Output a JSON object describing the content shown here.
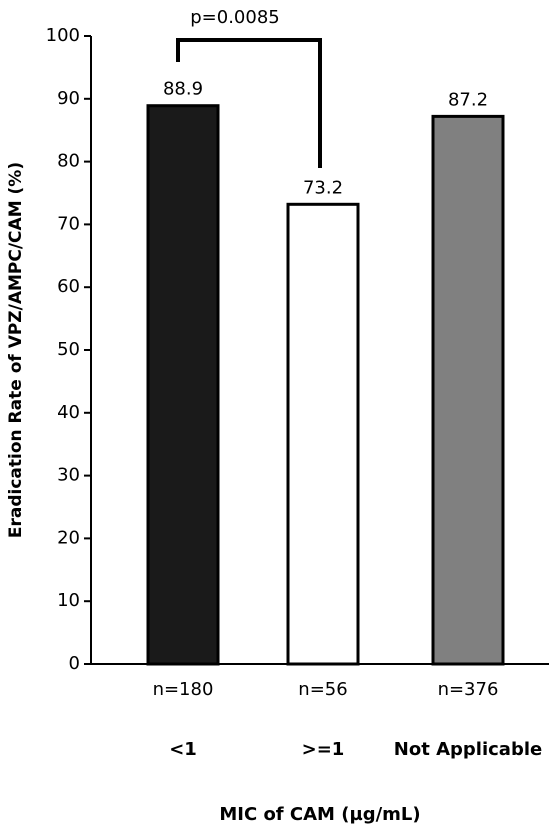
{
  "chart_data": {
    "type": "bar",
    "y_label": "Eradication Rate of VPZ/AMPC/CAM (%)",
    "x_label": "MIC of CAM (µg/mL)",
    "categories": [
      "<1",
      ">=1",
      "Not Applicable"
    ],
    "sample_labels": [
      "n=180",
      "n=56",
      "n=376"
    ],
    "values": [
      88.9,
      73.2,
      87.2
    ],
    "colors": [
      "#1a1a1a",
      "#ffffff",
      "#808080"
    ],
    "annotation": "p=0.0085",
    "ylim": [
      0,
      100
    ],
    "yticks": [
      0,
      10,
      20,
      30,
      40,
      50,
      60,
      70,
      80,
      90,
      100
    ],
    "grid": false
  }
}
